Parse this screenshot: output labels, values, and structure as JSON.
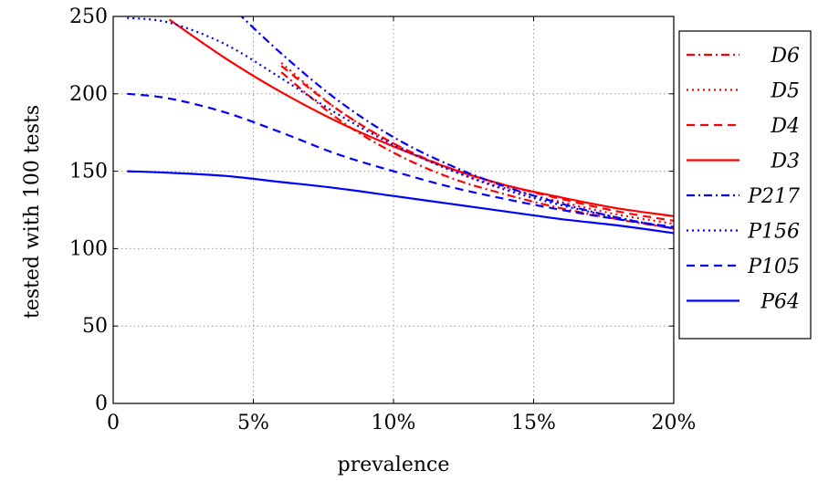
{
  "chart_data": {
    "type": "line",
    "title": "",
    "xlabel": "prevalence",
    "ylabel": "tested with 100 tests",
    "xlim": [
      0,
      0.2
    ],
    "ylim": [
      0,
      250
    ],
    "x_ticks": [
      0,
      0.05,
      0.1,
      0.15,
      0.2
    ],
    "x_tick_labels": [
      "0",
      "5%",
      "10%",
      "15%",
      "20%"
    ],
    "y_ticks": [
      0,
      50,
      100,
      150,
      200,
      250
    ],
    "y_tick_labels": [
      "0",
      "50",
      "100",
      "150",
      "200",
      "250"
    ],
    "grid": true,
    "legend_position": "outside-right",
    "x": [
      0.005,
      0.02,
      0.04,
      0.06,
      0.08,
      0.1,
      0.12,
      0.14,
      0.16,
      0.18,
      0.2
    ],
    "series": [
      {
        "name": "D6",
        "color": "#ff0000",
        "style": "dashdot",
        "values": [
          null,
          null,
          null,
          214,
          184,
          162,
          146,
          135,
          126,
          119,
          113
        ]
      },
      {
        "name": "D5",
        "color": "#ff0000",
        "style": "dotted",
        "values": [
          null,
          null,
          null,
          220,
          190,
          168,
          151,
          139,
          130,
          122,
          116
        ]
      },
      {
        "name": "D4",
        "color": "#ff0000",
        "style": "dashed",
        "values": [
          null,
          null,
          null,
          218,
          190,
          168,
          152,
          141,
          132,
          124,
          118
        ]
      },
      {
        "name": "D3",
        "color": "#ff0000",
        "style": "solid",
        "values": [
          null,
          248,
          223,
          201,
          182,
          166,
          152,
          141,
          133,
          126,
          121
        ]
      },
      {
        "name": "P217",
        "color": "#0000ff",
        "style": "dashdot",
        "values": [
          null,
          null,
          260,
          226,
          196,
          172,
          154,
          140,
          129,
          120,
          113
        ]
      },
      {
        "name": "P156",
        "color": "#0000ff",
        "style": "dotted",
        "values": [
          249,
          246,
          232,
          210,
          187,
          167,
          151,
          138,
          128,
          120,
          113
        ]
      },
      {
        "name": "P105",
        "color": "#0000ff",
        "style": "dashed",
        "values": [
          200,
          197,
          188,
          175,
          161,
          150,
          140,
          132,
          125,
          119,
          114
        ]
      },
      {
        "name": "P64",
        "color": "#0000ff",
        "style": "solid",
        "values": [
          150,
          149,
          147,
          143,
          139,
          134,
          129,
          124,
          119,
          115,
          110
        ]
      }
    ]
  }
}
